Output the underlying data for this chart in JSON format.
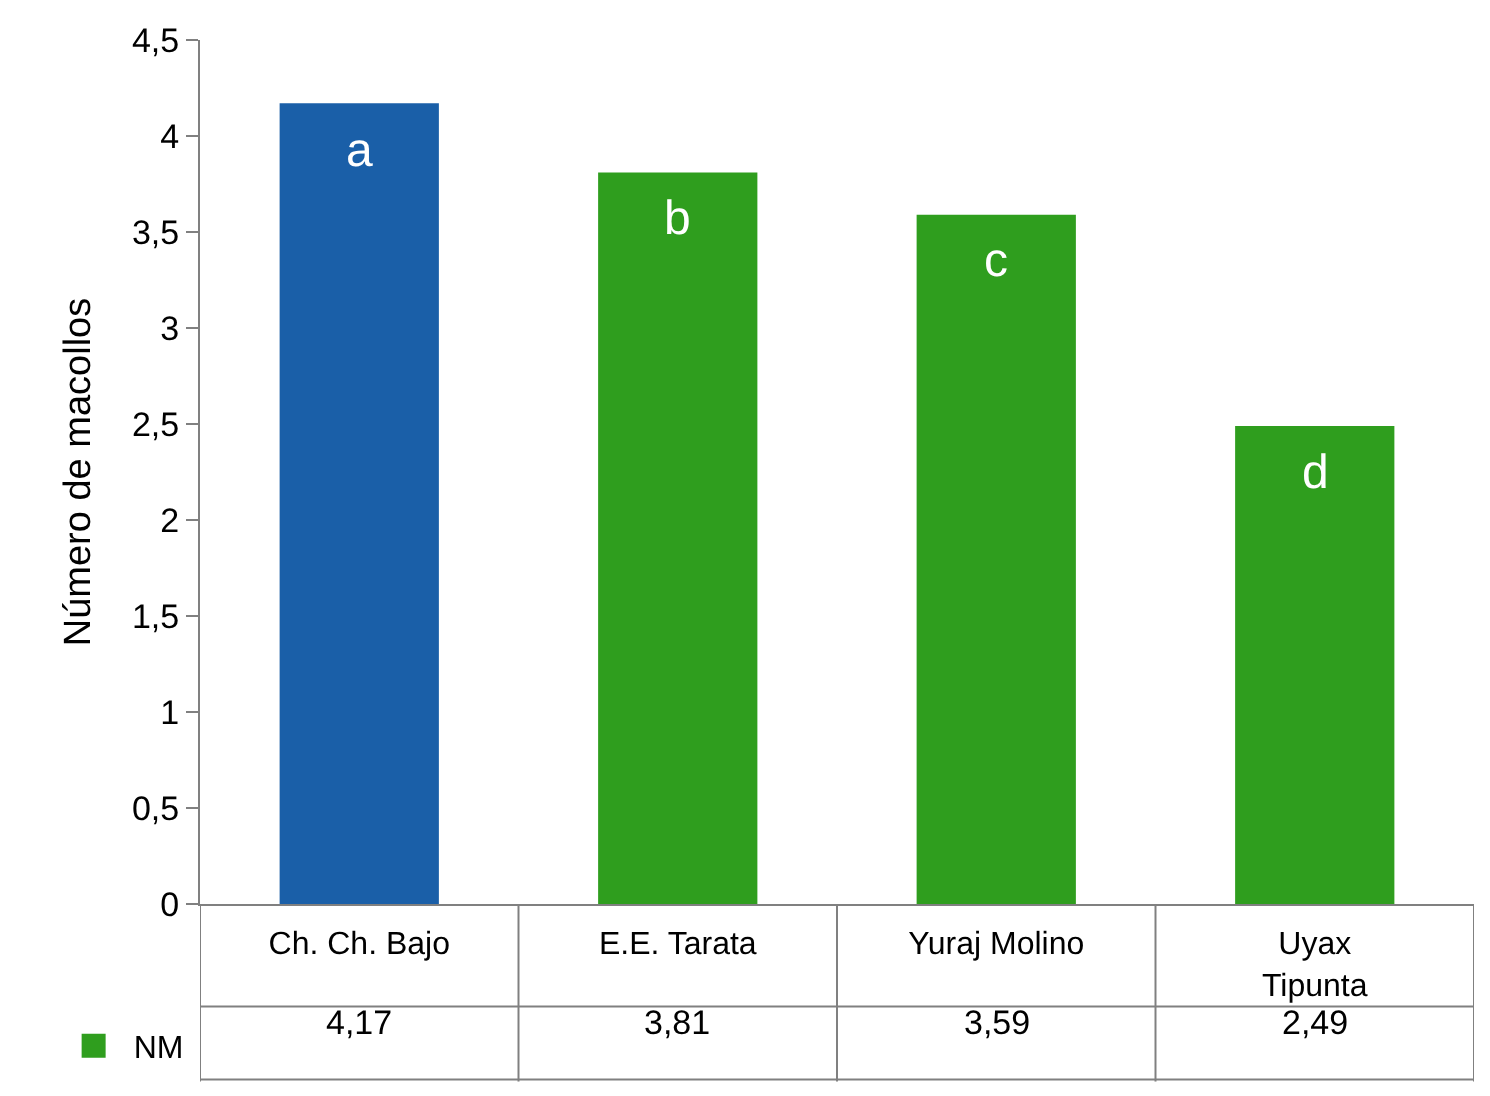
{
  "chart_data": {
    "type": "bar",
    "ylabel": "Número de macollos",
    "categories": [
      "Ch. Ch. Bajo",
      "E.E. Tarata",
      "Yuraj Molino",
      "Uyax\nTipunta"
    ],
    "series": [
      {
        "name": "NM",
        "color": "#2f9e1e",
        "colors": [
          "#1a5fa8",
          "#2f9e1e",
          "#2f9e1e",
          "#2f9e1e"
        ],
        "values": [
          4.17,
          3.81,
          3.59,
          2.49
        ],
        "value_labels": [
          "4,17",
          "3,81",
          "3,59",
          "2,49"
        ]
      }
    ],
    "ylim": [
      0,
      4.5
    ],
    "yticks": [
      0,
      {
        "value": 0.5,
        "label": "0,5"
      },
      1,
      {
        "value": 1.5,
        "label": "1,5"
      },
      2,
      {
        "value": 2.5,
        "label": "2,5"
      },
      3,
      {
        "value": 3.5,
        "label": "3,5"
      },
      4,
      {
        "value": 4.5,
        "label": "4,5"
      }
    ],
    "annotations": [
      "a",
      "b",
      "c",
      "d"
    ],
    "legend": "bottom left"
  }
}
